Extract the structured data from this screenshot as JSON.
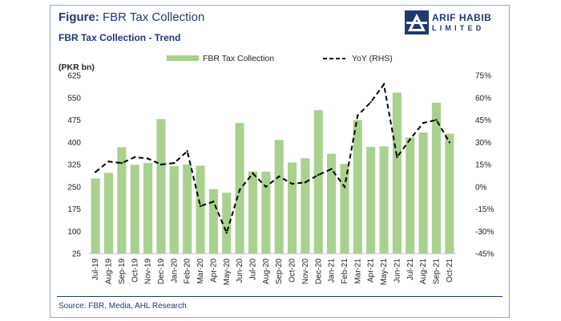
{
  "header": {
    "figure_label": "Figure:",
    "figure_title": "FBR Tax Collection",
    "chart_title": "FBR Tax Collection - Trend"
  },
  "logo": {
    "line1": "ARIF HABIB",
    "line2": "LIMITED"
  },
  "footer": {
    "source": "Source: FBR, Media, AHL Research"
  },
  "colors": {
    "bar": "#a9d18e",
    "line": "#000000",
    "title": "#1f3a6d"
  },
  "chart_data": {
    "type": "bar",
    "title": "FBR Tax Collection - Trend",
    "ylabel": "(PKR bn)",
    "ylim": [
      25,
      625
    ],
    "yticks": [
      25,
      100,
      175,
      250,
      325,
      400,
      475,
      550,
      625
    ],
    "y2lim": [
      -45,
      75
    ],
    "y2ticks": [
      "75%",
      "60%",
      "45%",
      "30%",
      "15%",
      "0%",
      "-15%",
      "-30%",
      "-45%"
    ],
    "y2tick_values": [
      75,
      60,
      45,
      30,
      15,
      0,
      -15,
      -30,
      -45
    ],
    "legend": {
      "bar_label": "FBR Tax Collection",
      "line_label": "YoY (RHS)",
      "position": "top"
    },
    "categories": [
      "Jul-19",
      "Aug-19",
      "Sep-19",
      "Oct-19",
      "Nov-19",
      "Dec-19",
      "Jan-20",
      "Feb-20",
      "Mar-20",
      "Apr-20",
      "May-20",
      "Jun-20",
      "Jul-20",
      "Aug-20",
      "Sep-20",
      "Oct-20",
      "Nov-20",
      "Dec-20",
      "Jan-21",
      "Feb-21",
      "Mar-21",
      "Apr-21",
      "May-21",
      "Jun-21",
      "Jul-21",
      "Aug-21",
      "Sep-21",
      "Oct-21"
    ],
    "series": [
      {
        "name": "FBR Tax Collection",
        "type": "bar",
        "axis": "left",
        "values": [
          278,
          297,
          383,
          324,
          330,
          478,
          320,
          325,
          321,
          242,
          230,
          465,
          302,
          301,
          408,
          332,
          346,
          508,
          361,
          327,
          475,
          384,
          386,
          567,
          416,
          433,
          533,
          429
        ]
      },
      {
        "name": "YoY (RHS)",
        "type": "line",
        "style": "dashed",
        "axis": "right",
        "values": [
          10,
          17,
          16,
          20,
          19,
          15,
          16,
          24,
          -13,
          -10,
          -31,
          -2,
          9,
          0,
          7,
          2,
          3,
          8,
          12,
          0,
          48,
          57,
          69,
          20,
          32,
          43,
          45,
          30
        ]
      }
    ]
  }
}
